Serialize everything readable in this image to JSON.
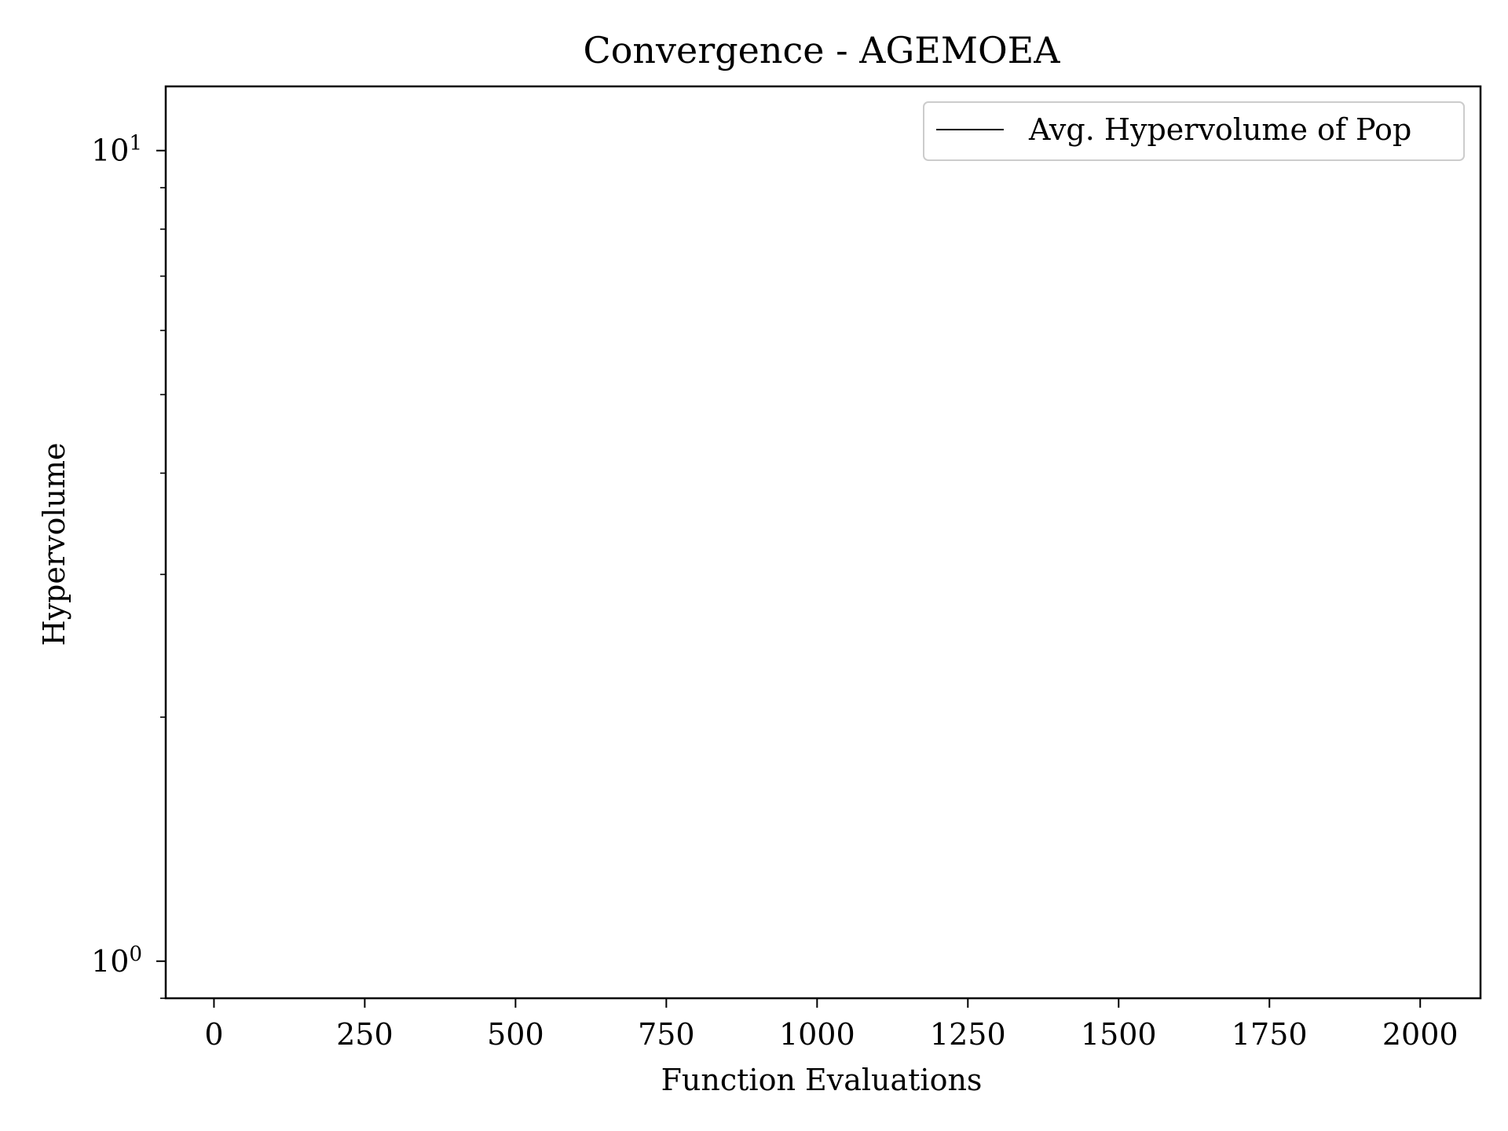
{
  "chart_data": {
    "type": "line",
    "title": "Convergence - AGEMOEA",
    "xlabel": "Function Evaluations",
    "ylabel": "Hypervolume",
    "xlim": [
      -80,
      2100
    ],
    "ylim": [
      0.9,
      12
    ],
    "yscale": "log",
    "x_ticks": [
      0,
      250,
      500,
      750,
      1000,
      1250,
      1500,
      1750,
      2000
    ],
    "x_tick_labels": [
      "0",
      "250",
      "500",
      "750",
      "1000",
      "1250",
      "1500",
      "1750",
      "2000"
    ],
    "y_major_ticks": [
      {
        "value": 1,
        "base": "10",
        "exp": "0"
      },
      {
        "value": 10,
        "base": "10",
        "exp": "1"
      }
    ],
    "y_minor_ticks": [
      0.9,
      2,
      3,
      4,
      5,
      6,
      7,
      8,
      9
    ],
    "grid": false,
    "legend": {
      "placement": "top-right",
      "entries": [
        "Avg. Hypervolume of Pop"
      ]
    },
    "series": [
      {
        "name": "Avg. Hypervolume of Pop",
        "color": "#000000",
        "x": [],
        "values": []
      }
    ]
  }
}
